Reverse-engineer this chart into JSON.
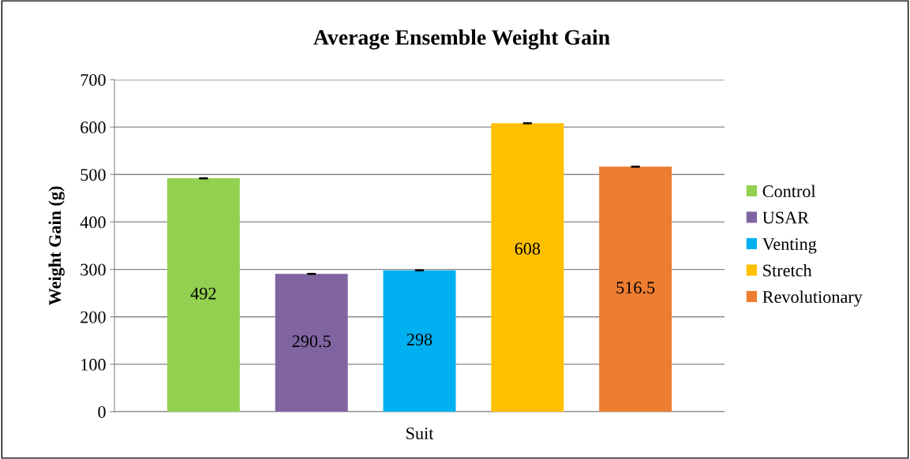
{
  "chart_data": {
    "type": "bar",
    "title": "Average Ensemble Weight Gain",
    "ylabel": "Weight Gain (g)",
    "categories": [
      "Suit"
    ],
    "series": [
      {
        "name": "Control",
        "color": "#92d050",
        "values": [
          492
        ],
        "errors": [
          1
        ]
      },
      {
        "name": "USAR",
        "color": "#8064a2",
        "values": [
          290.5
        ],
        "errors": [
          1
        ]
      },
      {
        "name": "Venting",
        "color": "#00b0f0",
        "values": [
          298
        ],
        "errors": [
          1
        ]
      },
      {
        "name": "Stretch",
        "color": "#ffc000",
        "values": [
          608
        ],
        "errors": [
          1
        ]
      },
      {
        "name": "Revolutionary",
        "color": "#ed7d31",
        "values": [
          516.5
        ],
        "errors": [
          1
        ]
      }
    ],
    "ylim": [
      0,
      700
    ],
    "yticks": [
      0,
      100,
      200,
      300,
      400,
      500,
      600,
      700
    ],
    "grid": "y",
    "legend": "right",
    "data_labels": true
  }
}
